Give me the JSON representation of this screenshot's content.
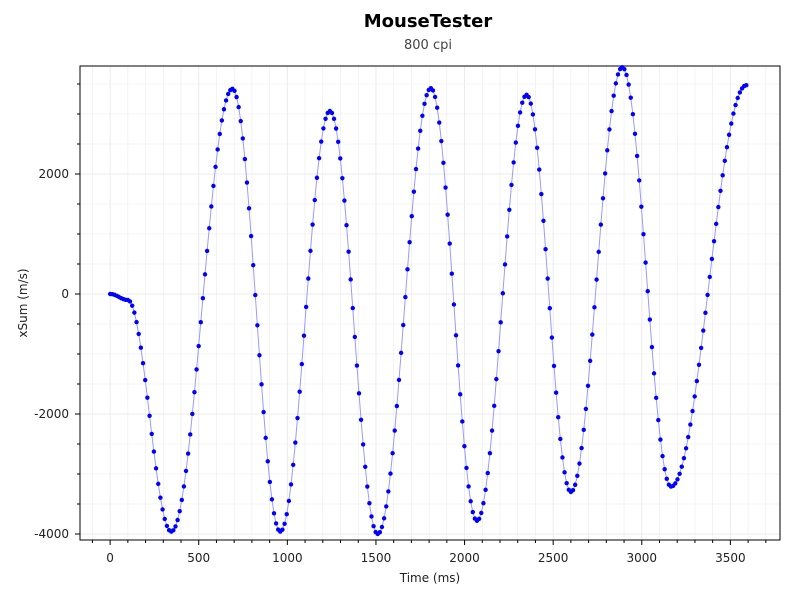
{
  "chart_data": {
    "type": "line",
    "title": "MouseTester",
    "subtitle": "800 cpi",
    "xlabel": "Time (ms)",
    "ylabel": "xSum (m/s)",
    "xlim": [
      -170,
      3780
    ],
    "ylim": [
      -4100,
      3800
    ],
    "x_ticks": [
      0,
      500,
      1000,
      1500,
      2000,
      2500,
      3000,
      3500
    ],
    "y_ticks": [
      -4000,
      -2000,
      0,
      2000
    ],
    "grid": true,
    "colors": {
      "series": "#0000ff",
      "line": "#9a9aff",
      "grid": "#ebebeb",
      "axis": "#000000"
    },
    "series": [
      {
        "sampling_interval_ms": 12,
        "segments": [
          {
            "x": [
              0,
              100
            ],
            "y": [
              0,
              -100
            ]
          },
          {
            "x": [
              100,
              345
            ],
            "y": [
              -100,
              -3960
            ]
          },
          {
            "x": [
              345,
              690
            ],
            "y": [
              -3960,
              3420
            ]
          },
          {
            "x": [
              690,
              960
            ],
            "y": [
              3420,
              -3960
            ]
          },
          {
            "x": [
              960,
              1240
            ],
            "y": [
              -3960,
              3050
            ]
          },
          {
            "x": [
              1240,
              1510
            ],
            "y": [
              3050,
              -4000
            ]
          },
          {
            "x": [
              1510,
              1810
            ],
            "y": [
              -4000,
              3430
            ]
          },
          {
            "x": [
              1810,
              2070
            ],
            "y": [
              3430,
              -3780
            ]
          },
          {
            "x": [
              2070,
              2350
            ],
            "y": [
              -3780,
              3320
            ]
          },
          {
            "x": [
              2350,
              2600
            ],
            "y": [
              3320,
              -3300
            ]
          },
          {
            "x": [
              2600,
              2890
            ],
            "y": [
              -3300,
              3780
            ]
          },
          {
            "x": [
              2890,
              3165
            ],
            "y": [
              3780,
              -3210
            ]
          },
          {
            "x": [
              3165,
              3590
            ],
            "y": [
              -3210,
              3480
            ]
          }
        ]
      }
    ]
  }
}
